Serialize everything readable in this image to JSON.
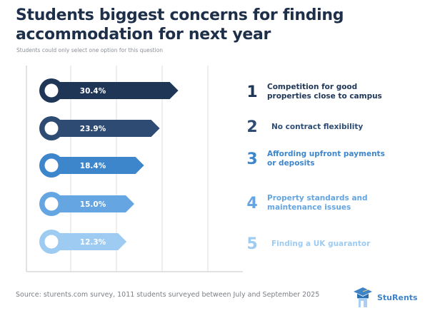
{
  "header": {
    "title": "Students biggest concerns for finding accommodation for next year",
    "subtitle": "Students could only select one option for this question"
  },
  "chart_data": {
    "type": "bar",
    "orientation": "horizontal",
    "title": "Students biggest concerns for finding accommodation for next year",
    "subtitle": "Students could only select one option for this question",
    "categories": [
      "Competition for good properties close to campus",
      "No contract flexibility",
      "Affording upfront payments or deposits",
      "Property standards and maintenance issues",
      "Finding a UK guarantor"
    ],
    "ranks": [
      "1",
      "2",
      "3",
      "4",
      "5"
    ],
    "values": [
      30.4,
      23.9,
      18.4,
      15.0,
      12.3
    ],
    "value_labels": [
      "30.4%",
      "23.9%",
      "18.4%",
      "15.0%",
      "12.3%"
    ],
    "unit": "%",
    "colors": [
      "#1f3657",
      "#2e4c73",
      "#3d86cc",
      "#64a5e2",
      "#9dcbf2"
    ],
    "grid": true,
    "legend": "right",
    "xlabel": "",
    "ylabel": ""
  },
  "legend": {
    "items": [
      {
        "rank": "1",
        "label_lines": [
          "Competition for good",
          "properties close to campus"
        ]
      },
      {
        "rank": "2",
        "label_lines": [
          "No contract flexibility"
        ]
      },
      {
        "rank": "3",
        "label_lines": [
          "Affording upfront payments",
          "or deposits"
        ]
      },
      {
        "rank": "4",
        "label_lines": [
          "Property standards and",
          "maintenance issues"
        ]
      },
      {
        "rank": "5",
        "label_lines": [
          "Finding a UK guarantor"
        ]
      }
    ]
  },
  "footer": {
    "source": "Source: sturents.com survey, 1011 students surveyed between July and September 2025",
    "brand": "StuRents",
    "brand_color": "#3f84c8"
  }
}
